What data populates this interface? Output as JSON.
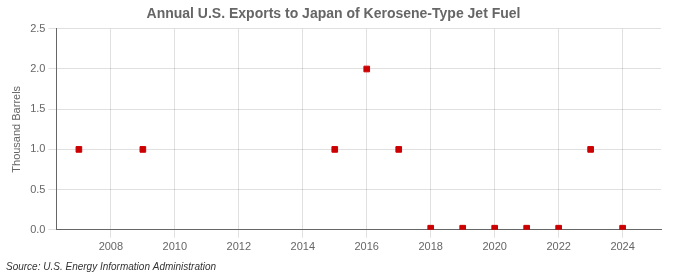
{
  "chart_data": {
    "type": "scatter",
    "title": "Annual U.S. Exports to Japan of Kerosene-Type Jet Fuel",
    "ylabel": "Thousand Barrels",
    "annotations": [
      "Source: U.S. Energy Information Administration"
    ],
    "x": [
      2007,
      2009,
      2015,
      2016,
      2017,
      2018,
      2019,
      2020,
      2021,
      2022,
      2023,
      2024
    ],
    "values": [
      1.0,
      1.0,
      1.0,
      2.0,
      1.0,
      0.02,
      0.02,
      0.02,
      0.02,
      0.02,
      1.0,
      0.02
    ],
    "color": "#cc0000",
    "marker": "square",
    "xlim": [
      2006.3,
      2025.2
    ],
    "ylim": [
      0.0,
      2.5
    ],
    "xticks": [
      2008,
      2010,
      2012,
      2014,
      2016,
      2018,
      2020,
      2022,
      2024
    ],
    "yticks": [
      {
        "value": 0.0,
        "label": "0.0"
      },
      0.5,
      {
        "value": 1.0,
        "label": "1.0"
      },
      1.5,
      {
        "value": 2.0,
        "label": "2.0"
      },
      2.5
    ],
    "grid": true
  }
}
